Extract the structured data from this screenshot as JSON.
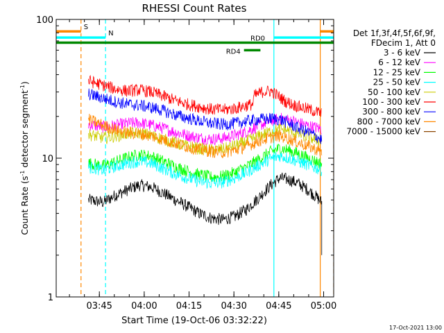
{
  "chart_data": {
    "type": "line",
    "title": "RHESSI Count Rates",
    "xlabel": "Start Time (19-Oct-06 03:32:22)",
    "ylabel_main": "Count Rate (s",
    "ylabel_sup1": "-1",
    "ylabel_mid": " detector segment",
    "ylabel_sup2": "-1",
    "ylabel_end": ")",
    "y_scale": "log",
    "ylim": [
      1,
      100
    ],
    "xlim_minutes_after_0332": [
      -1.8,
      91
    ],
    "x_ticks": [
      "03:45",
      "04:00",
      "04:15",
      "04:30",
      "04:45",
      "05:00"
    ],
    "y_ticks": [
      "1",
      "10",
      "100"
    ],
    "legend_header": [
      "Det 1f,3f,4f,5f,6f,9f,",
      "FDecim 1, Att 0"
    ],
    "legend_position": "right",
    "footer_date": "17-Oct-2021 13:00",
    "series": [
      {
        "name": "3 - 6 keV",
        "color": "#000000",
        "points": [
          [
            9,
            5.0
          ],
          [
            14,
            4.8
          ],
          [
            18,
            5.4
          ],
          [
            22,
            5.9
          ],
          [
            26,
            6.4
          ],
          [
            30,
            6.2
          ],
          [
            34,
            5.6
          ],
          [
            38,
            5.0
          ],
          [
            42,
            4.5
          ],
          [
            46,
            4.0
          ],
          [
            50,
            3.7
          ],
          [
            54,
            3.6
          ],
          [
            58,
            3.8
          ],
          [
            62,
            4.3
          ],
          [
            66,
            5.2
          ],
          [
            70,
            6.4
          ],
          [
            73,
            7.2
          ],
          [
            76,
            7.0
          ],
          [
            79,
            6.6
          ],
          [
            82,
            6.0
          ],
          [
            85,
            5.3
          ],
          [
            87,
            4.8
          ]
        ]
      },
      {
        "name": "6 - 12 keV",
        "color": "#ff00ff",
        "points": [
          [
            9,
            17.5
          ],
          [
            14,
            16.8
          ],
          [
            18,
            17.2
          ],
          [
            22,
            17.8
          ],
          [
            26,
            18.0
          ],
          [
            30,
            17.3
          ],
          [
            34,
            16.4
          ],
          [
            38,
            15.4
          ],
          [
            42,
            14.6
          ],
          [
            46,
            14.0
          ],
          [
            50,
            13.7
          ],
          [
            54,
            13.9
          ],
          [
            58,
            14.6
          ],
          [
            62,
            15.6
          ],
          [
            66,
            17.2
          ],
          [
            70,
            18.6
          ],
          [
            73,
            19.3
          ],
          [
            76,
            18.8
          ],
          [
            79,
            18.0
          ],
          [
            82,
            17.2
          ],
          [
            85,
            16.6
          ],
          [
            87,
            16.2
          ]
        ]
      },
      {
        "name": "12 - 25 keV",
        "color": "#00ff00",
        "points": [
          [
            9,
            9.2
          ],
          [
            14,
            8.8
          ],
          [
            18,
            9.4
          ],
          [
            22,
            10.1
          ],
          [
            26,
            10.6
          ],
          [
            30,
            10.3
          ],
          [
            34,
            9.5
          ],
          [
            38,
            8.7
          ],
          [
            42,
            8.1
          ],
          [
            46,
            7.6
          ],
          [
            50,
            7.3
          ],
          [
            54,
            7.4
          ],
          [
            58,
            7.9
          ],
          [
            62,
            8.7
          ],
          [
            66,
            9.8
          ],
          [
            70,
            11.1
          ],
          [
            73,
            11.8
          ],
          [
            76,
            11.4
          ],
          [
            79,
            10.8
          ],
          [
            82,
            10.1
          ],
          [
            85,
            9.5
          ],
          [
            87,
            9.1
          ]
        ]
      },
      {
        "name": "25 - 50 keV",
        "color": "#00ffff",
        "points": [
          [
            9,
            8.6
          ],
          [
            14,
            8.2
          ],
          [
            18,
            8.7
          ],
          [
            22,
            9.2
          ],
          [
            26,
            9.5
          ],
          [
            30,
            9.2
          ],
          [
            34,
            8.4
          ],
          [
            38,
            7.7
          ],
          [
            42,
            7.2
          ],
          [
            46,
            6.8
          ],
          [
            50,
            6.6
          ],
          [
            54,
            6.7
          ],
          [
            58,
            7.2
          ],
          [
            62,
            7.9
          ],
          [
            66,
            8.9
          ],
          [
            70,
            9.9
          ],
          [
            73,
            10.4
          ],
          [
            76,
            10.0
          ],
          [
            79,
            9.5
          ],
          [
            82,
            9.0
          ],
          [
            85,
            8.5
          ],
          [
            87,
            8.2
          ]
        ]
      },
      {
        "name": "50 - 100 keV",
        "color": "#cccc00",
        "points": [
          [
            9,
            14.8
          ],
          [
            14,
            14.0
          ],
          [
            18,
            14.4
          ],
          [
            22,
            15.0
          ],
          [
            26,
            15.2
          ],
          [
            30,
            14.6
          ],
          [
            34,
            13.7
          ],
          [
            38,
            12.9
          ],
          [
            42,
            12.2
          ],
          [
            46,
            11.7
          ],
          [
            50,
            11.4
          ],
          [
            54,
            11.6
          ],
          [
            58,
            12.3
          ],
          [
            62,
            13.2
          ],
          [
            66,
            14.4
          ],
          [
            70,
            15.6
          ],
          [
            73,
            16.2
          ],
          [
            76,
            15.8
          ],
          [
            79,
            15.0
          ],
          [
            82,
            14.3
          ],
          [
            85,
            13.6
          ],
          [
            87,
            13.2
          ]
        ]
      },
      {
        "name": "100 - 300 keV",
        "color": "#ff0000",
        "points": [
          [
            9,
            36.0
          ],
          [
            14,
            33.5
          ],
          [
            18,
            31.5
          ],
          [
            22,
            30.5
          ],
          [
            26,
            31.0
          ],
          [
            30,
            30.0
          ],
          [
            34,
            28.0
          ],
          [
            38,
            26.0
          ],
          [
            42,
            24.5
          ],
          [
            46,
            23.5
          ],
          [
            50,
            22.5
          ],
          [
            54,
            22.3
          ],
          [
            58,
            22.8
          ],
          [
            62,
            24.0
          ],
          [
            64,
            24.5
          ],
          [
            64.3,
            28.0
          ],
          [
            67,
            30.0
          ],
          [
            70,
            30.5
          ],
          [
            72,
            28.5
          ],
          [
            75,
            25.5
          ],
          [
            78,
            24.0
          ],
          [
            81,
            23.0
          ],
          [
            84,
            22.0
          ],
          [
            87,
            21.0
          ]
        ]
      },
      {
        "name": "300 - 800 keV",
        "color": "#0000ff",
        "points": [
          [
            9,
            29.0
          ],
          [
            14,
            27.0
          ],
          [
            18,
            25.5
          ],
          [
            22,
            24.5
          ],
          [
            26,
            24.0
          ],
          [
            30,
            23.2
          ],
          [
            34,
            22.0
          ],
          [
            38,
            20.5
          ],
          [
            42,
            19.5
          ],
          [
            46,
            18.5
          ],
          [
            50,
            17.8
          ],
          [
            54,
            17.5
          ],
          [
            58,
            17.8
          ],
          [
            62,
            18.5
          ],
          [
            66,
            19.0
          ],
          [
            70,
            19.3
          ],
          [
            73,
            19.0
          ],
          [
            76,
            17.8
          ],
          [
            79,
            16.5
          ],
          [
            82,
            15.5
          ],
          [
            85,
            14.5
          ],
          [
            87,
            13.5
          ]
        ]
      },
      {
        "name": "800 - 7000 keV",
        "color": "#ff8800",
        "points": [
          [
            9,
            19.0
          ],
          [
            14,
            17.2
          ],
          [
            18,
            16.0
          ],
          [
            22,
            15.3
          ],
          [
            26,
            15.0
          ],
          [
            30,
            14.5
          ],
          [
            34,
            13.6
          ],
          [
            38,
            12.8
          ],
          [
            42,
            12.1
          ],
          [
            46,
            11.6
          ],
          [
            50,
            11.2
          ],
          [
            54,
            11.0
          ],
          [
            58,
            11.4
          ],
          [
            62,
            12.2
          ],
          [
            66,
            13.3
          ],
          [
            70,
            14.1
          ],
          [
            73,
            14.5
          ],
          [
            76,
            13.8
          ],
          [
            79,
            13.0
          ],
          [
            82,
            12.3
          ],
          [
            85,
            11.6
          ],
          [
            87,
            11.0
          ]
        ]
      },
      {
        "name": "7000 - 15000 keV",
        "color": "#8b4500",
        "points": []
      }
    ],
    "attenuator_bars": [
      {
        "label": "S",
        "color": "#ff8800",
        "level": 82,
        "segments": [
          [
            -1.8,
            6.5
          ],
          [
            86.5,
            91
          ]
        ]
      },
      {
        "label": "N",
        "color": "#00ffff",
        "level": 74,
        "segments": [
          [
            -1.8,
            14.7
          ],
          [
            71,
            91
          ]
        ]
      },
      {
        "label": "RD0",
        "color": "#008800",
        "level": 68,
        "segments": [
          [
            -1.8,
            91
          ]
        ]
      },
      {
        "label": "RD4",
        "color": "#008800",
        "level": 60,
        "segments": [
          [
            61,
            66.5
          ]
        ]
      }
    ],
    "event_lines": [
      {
        "color": "#00ffff",
        "style": "solid",
        "x": 71
      },
      {
        "color": "#ff8800",
        "style": "solid",
        "x": 86.5
      },
      {
        "color": "#ff8800",
        "style": "dashed",
        "x": 6.5
      },
      {
        "color": "#00ffff",
        "style": "dashed",
        "x": 14.7
      },
      {
        "color": "#ff8800",
        "style": "dashed",
        "x": 91
      }
    ]
  }
}
